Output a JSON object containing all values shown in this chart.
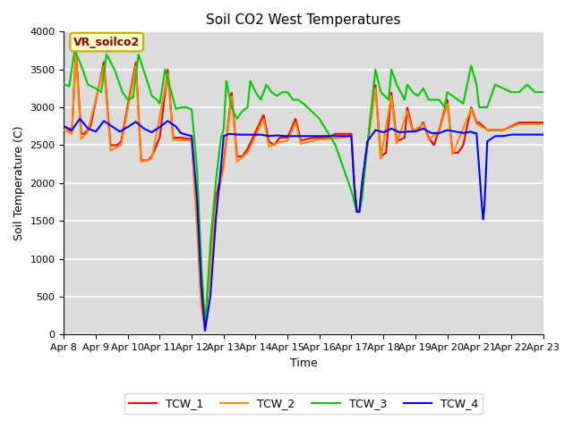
{
  "title": "Soil CO2 West Temperatures",
  "xlabel": "Time",
  "ylabel": "Soil Temperature (C)",
  "ylim": [
    0,
    4000
  ],
  "bg_color": "#dcdcdc",
  "legend_label": "VR_soilco2",
  "series_labels": [
    "TCW_1",
    "TCW_2",
    "TCW_3",
    "TCW_4"
  ],
  "series_colors": [
    "#ff0000",
    "#ff8800",
    "#00cc00",
    "#0000ff"
  ],
  "xtick_labels": [
    "Apr 8",
    "Apr 9",
    "Apr 10",
    "Apr 11",
    "Apr 12",
    "Apr 13",
    "Apr 14",
    "Apr 15",
    "Apr 16",
    "Apr 17",
    "Apr 18",
    "Apr 19",
    "Apr 20",
    "Apr 21",
    "Apr 22",
    "Apr 23"
  ],
  "grid_color": "#ffffff",
  "title_fontsize": 11,
  "tick_fontsize": 8,
  "label_fontsize": 9
}
